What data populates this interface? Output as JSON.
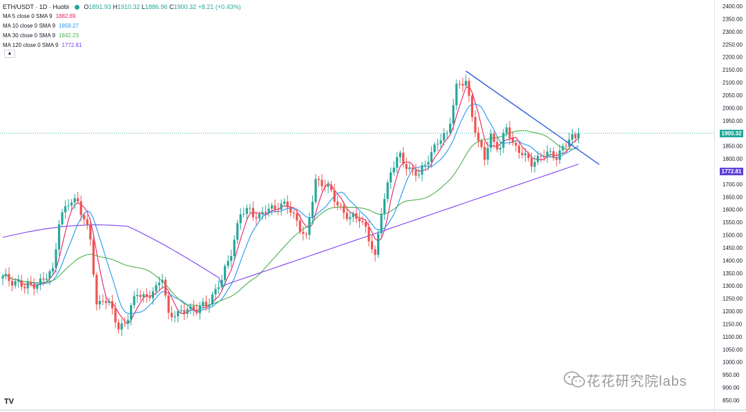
{
  "symbol": {
    "pair": "ETH/USDT · 1D · Huobi",
    "ohlc": [
      {
        "key": "O",
        "value": "1891.93"
      },
      {
        "key": "H",
        "value": "1910.32"
      },
      {
        "key": "L",
        "value": "1886.96"
      },
      {
        "key": "C",
        "value": "1900.32"
      }
    ],
    "change": "+8.21 (+0.43%)",
    "collapse_icon": "chevron-up-icon"
  },
  "indicators": [
    {
      "label": "MA 5 close 0 SMA 9",
      "value": "1882.89",
      "color": "#e91e63"
    },
    {
      "label": "MA 10 close 0 SMA 9",
      "value": "1859.27",
      "color": "#2196f3"
    },
    {
      "label": "MA 30 close 0 SMA 9",
      "value": "1842.23",
      "color": "#4caf50"
    },
    {
      "label": "MA 120 close 0 SMA 9",
      "value": "1772.81",
      "color": "#7e3ff2"
    }
  ],
  "price_tags": {
    "last": {
      "text": "1900.32",
      "price": 1900.32,
      "color": "#26a69a"
    },
    "ma120": {
      "text": "1772.81",
      "price": 1772.81,
      "color": "#5d3fd3"
    }
  },
  "watermark": {
    "text": "花花研究院labs",
    "icon": "wechat-icon"
  },
  "logo": {
    "text": "TV",
    "icon": "tradingview-logo-icon"
  },
  "colors": {
    "up": "#26a69a",
    "down": "#ef5350",
    "trendline": "#3d6ee0",
    "grid": "#e0e3eb"
  },
  "chart_data": {
    "type": "candlestick",
    "title": "ETH/USDT · 1D · Huobi",
    "ylim": [
      825,
      2425
    ],
    "y_ticks": [
      850,
      900,
      950,
      1000,
      1050,
      1100,
      1150,
      1200,
      1250,
      1300,
      1350,
      1400,
      1450,
      1500,
      1550,
      1600,
      1650,
      1700,
      1750,
      1800,
      1850,
      1900,
      1950,
      2000,
      2050,
      2100,
      2150,
      2200,
      2250,
      2300,
      2350,
      2400
    ],
    "x_ticks": [],
    "anchors": [
      {
        "i": 0,
        "p": 1330
      },
      {
        "i": 4,
        "p": 1320
      },
      {
        "i": 7,
        "p": 1290
      },
      {
        "i": 10,
        "p": 1310
      },
      {
        "i": 13,
        "p": 1320
      },
      {
        "i": 16,
        "p": 1360
      },
      {
        "i": 18,
        "p": 1560
      },
      {
        "i": 21,
        "p": 1620
      },
      {
        "i": 24,
        "p": 1640
      },
      {
        "i": 26,
        "p": 1560
      },
      {
        "i": 28,
        "p": 1480
      },
      {
        "i": 30,
        "p": 1220
      },
      {
        "i": 32,
        "p": 1260
      },
      {
        "i": 35,
        "p": 1200
      },
      {
        "i": 37,
        "p": 1130
      },
      {
        "i": 40,
        "p": 1180
      },
      {
        "i": 43,
        "p": 1270
      },
      {
        "i": 46,
        "p": 1260
      },
      {
        "i": 49,
        "p": 1280
      },
      {
        "i": 51,
        "p": 1340
      },
      {
        "i": 53,
        "p": 1190
      },
      {
        "i": 56,
        "p": 1180
      },
      {
        "i": 59,
        "p": 1220
      },
      {
        "i": 62,
        "p": 1200
      },
      {
        "i": 65,
        "p": 1230
      },
      {
        "i": 68,
        "p": 1280
      },
      {
        "i": 70,
        "p": 1320
      },
      {
        "i": 73,
        "p": 1440
      },
      {
        "i": 76,
        "p": 1580
      },
      {
        "i": 79,
        "p": 1600
      },
      {
        "i": 82,
        "p": 1570
      },
      {
        "i": 85,
        "p": 1600
      },
      {
        "i": 88,
        "p": 1620
      },
      {
        "i": 91,
        "p": 1610
      },
      {
        "i": 94,
        "p": 1560
      },
      {
        "i": 97,
        "p": 1480
      },
      {
        "i": 100,
        "p": 1720
      },
      {
        "i": 103,
        "p": 1700
      },
      {
        "i": 106,
        "p": 1640
      },
      {
        "i": 108,
        "p": 1610
      },
      {
        "i": 111,
        "p": 1560
      },
      {
        "i": 114,
        "p": 1570
      },
      {
        "i": 116,
        "p": 1530
      },
      {
        "i": 119,
        "p": 1400
      },
      {
        "i": 121,
        "p": 1600
      },
      {
        "i": 124,
        "p": 1750
      },
      {
        "i": 127,
        "p": 1810
      },
      {
        "i": 130,
        "p": 1760
      },
      {
        "i": 133,
        "p": 1730
      },
      {
        "i": 136,
        "p": 1810
      },
      {
        "i": 139,
        "p": 1860
      },
      {
        "i": 142,
        "p": 1900
      },
      {
        "i": 145,
        "p": 2080
      },
      {
        "i": 148,
        "p": 2100
      },
      {
        "i": 150,
        "p": 1980
      },
      {
        "i": 152,
        "p": 1860
      },
      {
        "i": 154,
        "p": 1800
      },
      {
        "i": 156,
        "p": 1890
      },
      {
        "i": 159,
        "p": 1840
      },
      {
        "i": 161,
        "p": 1920
      },
      {
        "i": 163,
        "p": 1860
      },
      {
        "i": 165,
        "p": 1840
      },
      {
        "i": 167,
        "p": 1800
      },
      {
        "i": 169,
        "p": 1780
      },
      {
        "i": 172,
        "p": 1820
      },
      {
        "i": 175,
        "p": 1810
      },
      {
        "i": 177,
        "p": 1810
      },
      {
        "i": 179,
        "p": 1850
      },
      {
        "i": 181,
        "p": 1870
      },
      {
        "i": 183,
        "p": 1880
      },
      {
        "i": 184,
        "p": 1900
      }
    ],
    "candle_count": 185,
    "series": [
      {
        "name": "MA 5 close 0 SMA 9",
        "period": 5,
        "color": "#e91e63",
        "last": 1882.89
      },
      {
        "name": "MA 10 close 0 SMA 9",
        "period": 10,
        "color": "#2196f3",
        "last": 1859.27
      },
      {
        "name": "MA 30 close 0 SMA 9",
        "period": 30,
        "color": "#4caf50",
        "last": 1842.23
      },
      {
        "name": "MA 120 close 0 SMA 9",
        "period": 120,
        "color": "#7e3ff2",
        "last": 1772.81
      }
    ],
    "trendline": {
      "from": {
        "i": 148,
        "price": 2145
      },
      "to": {
        "i": 184,
        "price": 1775
      },
      "extend_to": {
        "i": 188,
        "price": 1772
      }
    },
    "last_price_line": 1900.32
  }
}
